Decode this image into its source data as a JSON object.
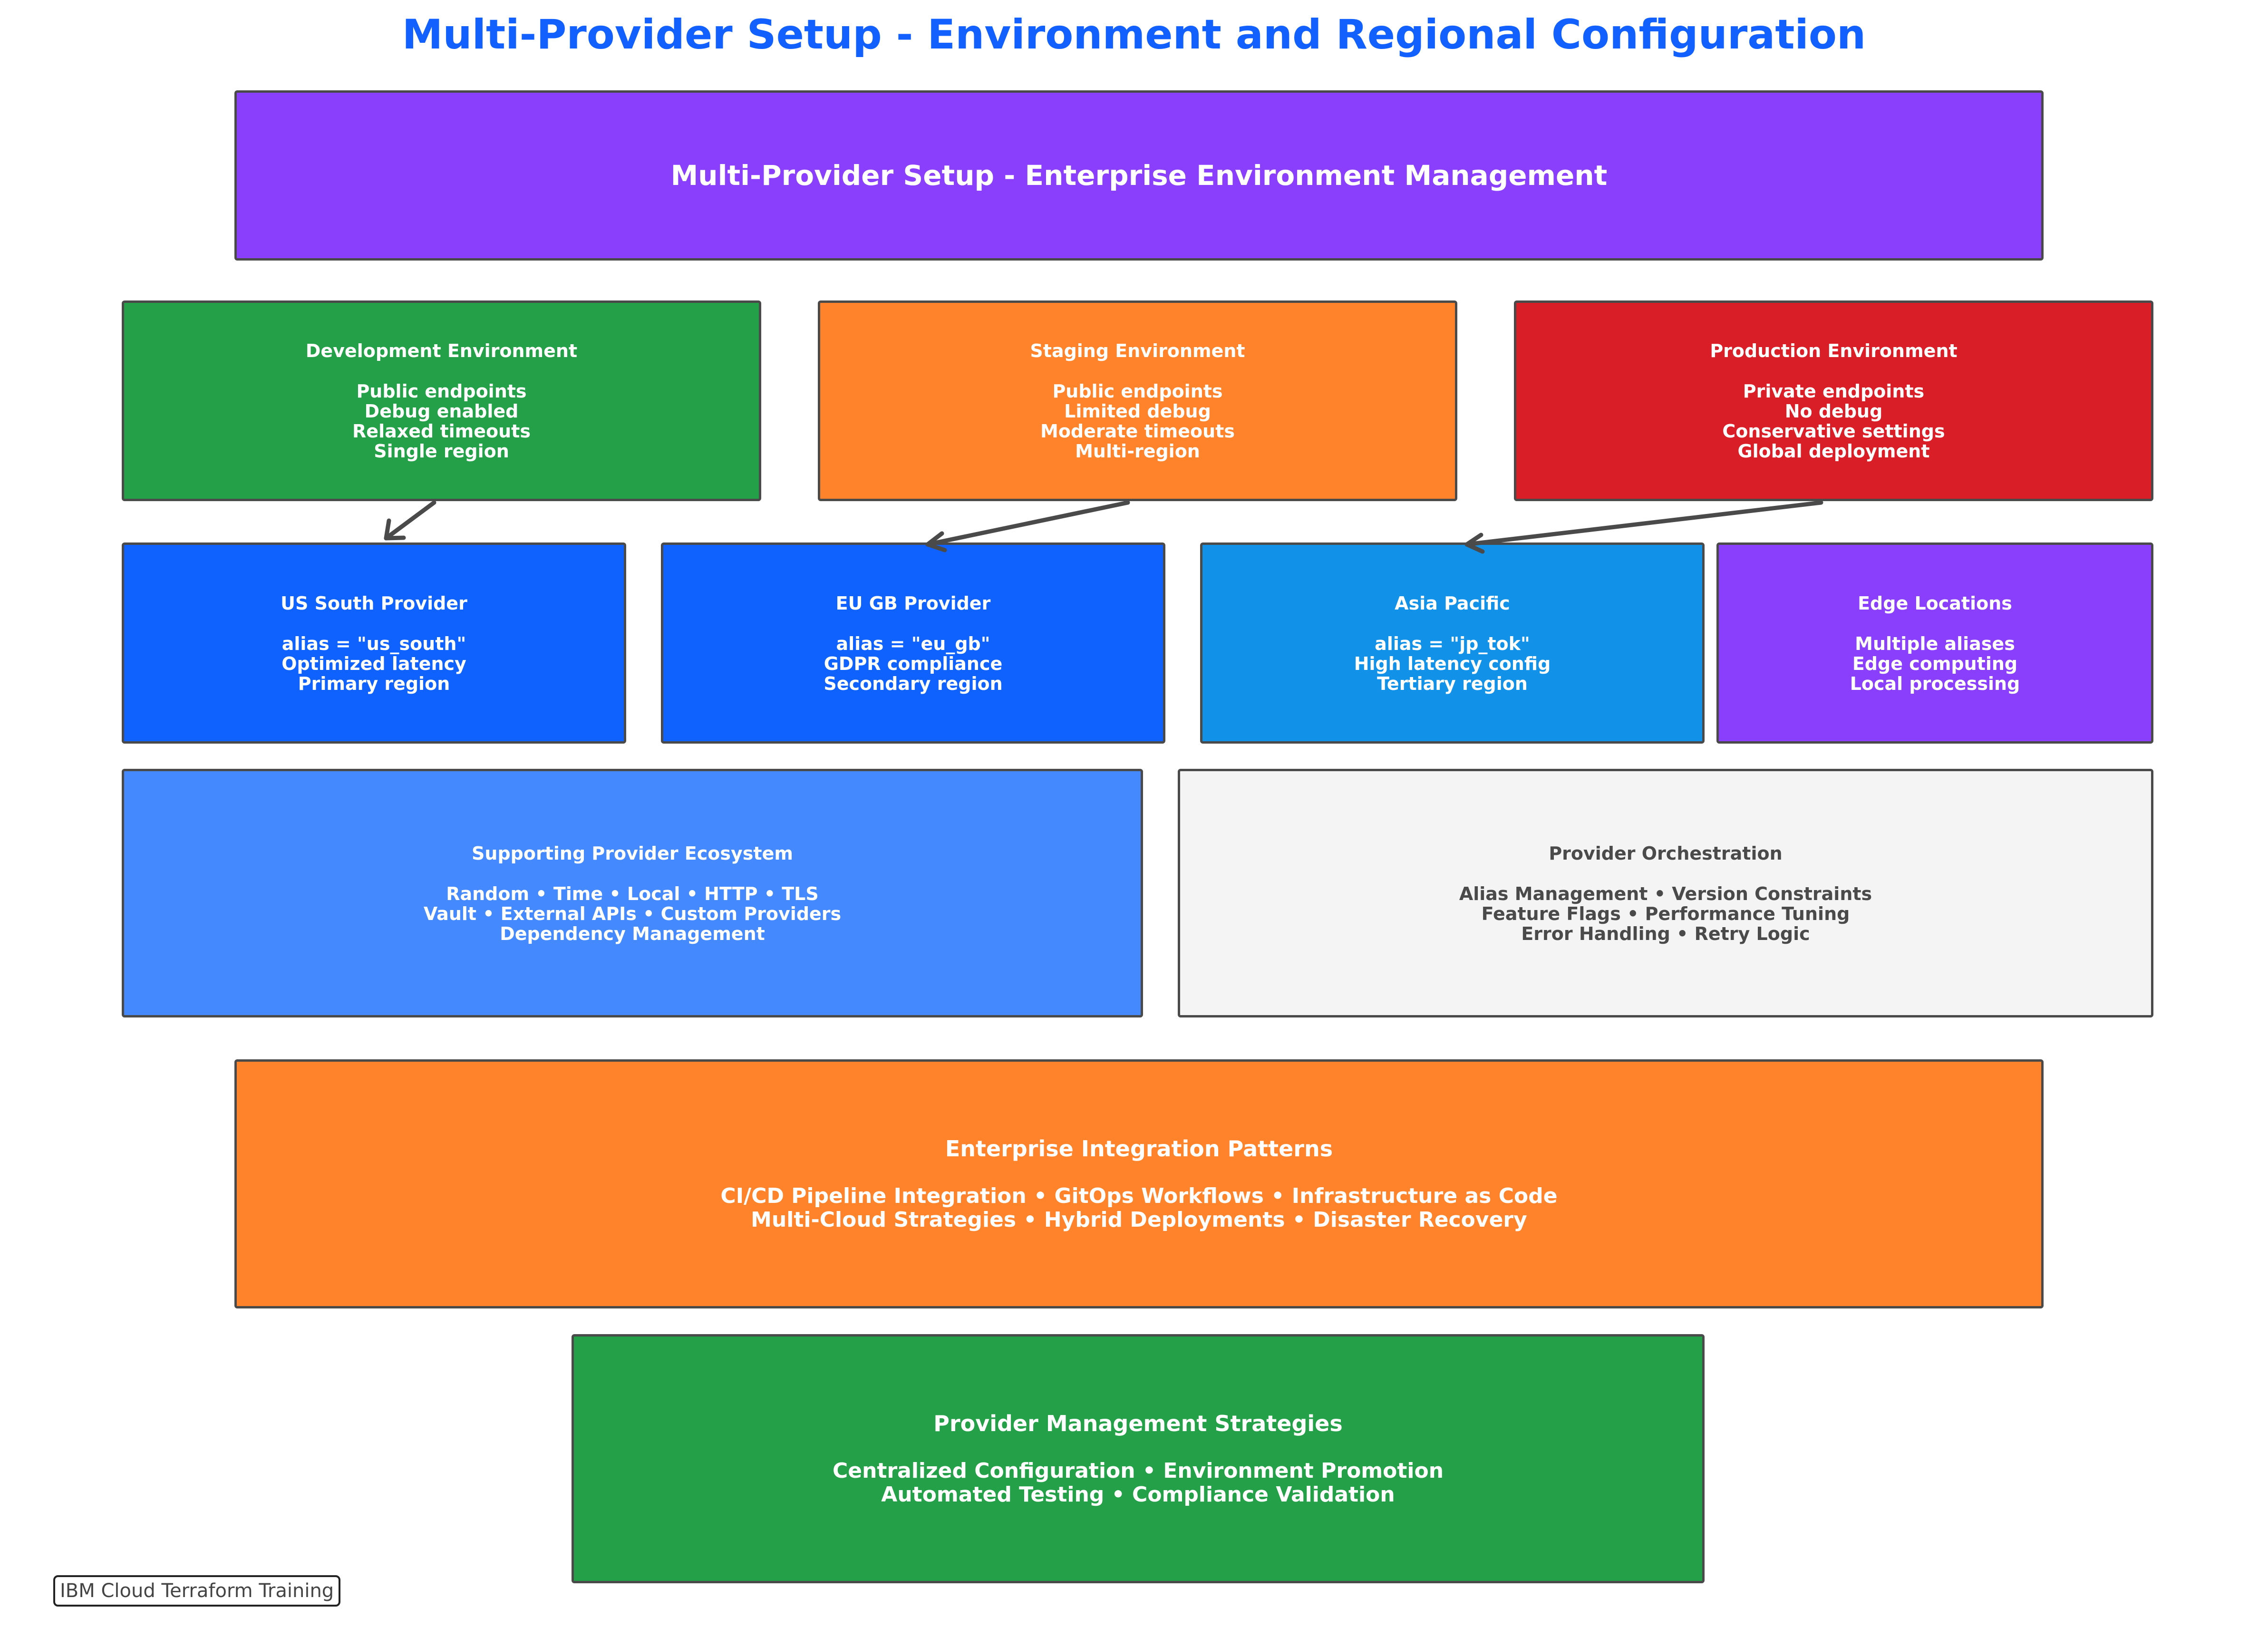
{
  "title": "Multi-Provider Setup - Environment and Regional Configuration",
  "banner": {
    "title": "Multi-Provider Setup - Enterprise Environment Management",
    "color": "#8A3FFC"
  },
  "environments": [
    {
      "title": "Development Environment",
      "lines": [
        "Public endpoints",
        "Debug enabled",
        "Relaxed timeouts",
        "Single region"
      ],
      "color": "#24A148"
    },
    {
      "title": "Staging Environment",
      "lines": [
        "Public endpoints",
        "Limited debug",
        "Moderate timeouts",
        "Multi-region"
      ],
      "color": "#FF832B"
    },
    {
      "title": "Production Environment",
      "lines": [
        "Private endpoints",
        "No debug",
        "Conservative settings",
        "Global deployment"
      ],
      "color": "#DA1E28"
    }
  ],
  "providers": [
    {
      "title": "US South Provider",
      "lines": [
        "alias = \"us_south\"",
        "Optimized latency",
        "Primary region"
      ],
      "color": "#0F62FE"
    },
    {
      "title": "EU GB Provider",
      "lines": [
        "alias = \"eu_gb\"",
        "GDPR compliance",
        "Secondary region"
      ],
      "color": "#0F62FE"
    },
    {
      "title": "Asia Pacific",
      "lines": [
        "alias = \"jp_tok\"",
        "High latency config",
        "Tertiary region"
      ],
      "color": "#1192E8"
    },
    {
      "title": "Edge Locations",
      "lines": [
        "Multiple aliases",
        "Edge computing",
        "Local processing"
      ],
      "color": "#8A3FFC"
    }
  ],
  "ecosystem": {
    "title": "Supporting Provider Ecosystem",
    "lines": [
      "Random • Time • Local • HTTP • TLS",
      "Vault • External APIs • Custom Providers",
      "Dependency Management"
    ],
    "color": "#4589FF"
  },
  "orchestration": {
    "title": "Provider Orchestration",
    "lines": [
      "Alias Management • Version Constraints",
      "Feature Flags • Performance Tuning",
      "Error Handling • Retry Logic"
    ],
    "color": "#F4F4F4"
  },
  "integration": {
    "title": "Enterprise Integration Patterns",
    "lines": [
      "CI/CD Pipeline Integration • GitOps Workflows • Infrastructure as Code",
      "Multi-Cloud Strategies • Hybrid Deployments • Disaster Recovery"
    ],
    "color": "#FF832B"
  },
  "strategies": {
    "title": "Provider Management Strategies",
    "lines": [
      "Centralized Configuration • Environment Promotion",
      "Automated Testing • Compliance Validation"
    ],
    "color": "#24A148"
  },
  "footer": "IBM Cloud Terraform Training",
  "colors": {
    "title": "#1261FE",
    "border": "#4A4A4A",
    "arrow": "#4A4A4A"
  }
}
